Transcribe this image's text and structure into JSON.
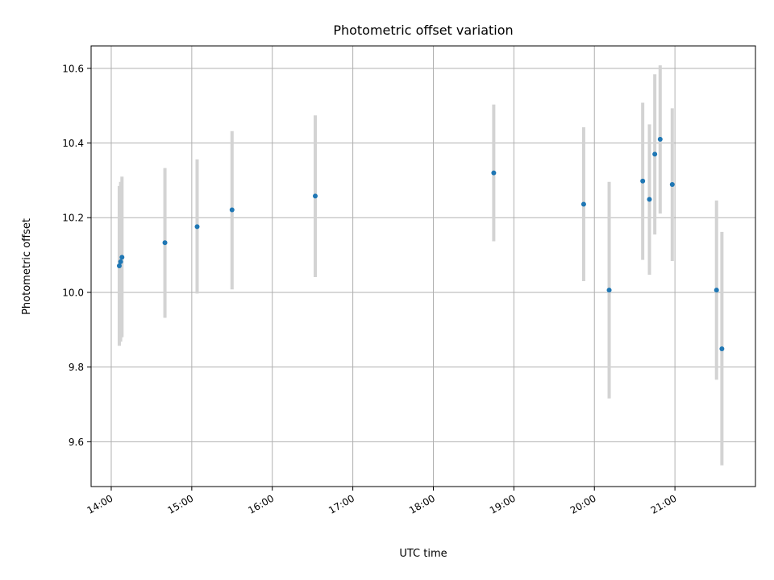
{
  "chart_data": {
    "type": "scatter",
    "title": "Photometric offset variation",
    "xlabel": "UTC time",
    "ylabel": "Photometric offset",
    "x_tick_labels": [
      "14:00",
      "15:00",
      "16:00",
      "17:00",
      "18:00",
      "19:00",
      "20:00",
      "21:00"
    ],
    "x_tick_hours": [
      14,
      15,
      16,
      17,
      18,
      19,
      20,
      21
    ],
    "y_ticks": [
      9.6,
      9.8,
      10.0,
      10.2,
      10.4,
      10.6
    ],
    "y_tick_labels": [
      "9.6",
      "9.8",
      "10.0",
      "10.2",
      "10.4",
      "10.6"
    ],
    "xlim": [
      "13:45",
      "22:00"
    ],
    "ylim": [
      9.48,
      10.66
    ],
    "grid": true,
    "colors": {
      "point": "#1f77b4",
      "error_bar": "#d3d3d3",
      "grid": "#b0b0b0"
    },
    "series": [
      {
        "points": [
          {
            "time": "14:06",
            "y": 10.071,
            "low": 9.857,
            "high": 10.285
          },
          {
            "time": "14:07",
            "y": 10.082,
            "low": 9.868,
            "high": 10.296
          },
          {
            "time": "14:08",
            "y": 10.094,
            "low": 9.88,
            "high": 10.31
          },
          {
            "time": "14:40",
            "y": 10.133,
            "low": 9.932,
            "high": 10.333
          },
          {
            "time": "15:04",
            "y": 10.176,
            "low": 9.997,
            "high": 10.356
          },
          {
            "time": "15:30",
            "y": 10.221,
            "low": 10.008,
            "high": 10.432
          },
          {
            "time": "16:32",
            "y": 10.258,
            "low": 10.041,
            "high": 10.474
          },
          {
            "time": "18:45",
            "y": 10.32,
            "low": 10.137,
            "high": 10.503
          },
          {
            "time": "19:52",
            "y": 10.236,
            "low": 10.03,
            "high": 10.442
          },
          {
            "time": "20:11",
            "y": 10.006,
            "low": 9.716,
            "high": 10.296
          },
          {
            "time": "20:36",
            "y": 10.298,
            "low": 10.087,
            "high": 10.508
          },
          {
            "time": "20:41",
            "y": 10.249,
            "low": 10.047,
            "high": 10.45
          },
          {
            "time": "20:45",
            "y": 10.37,
            "low": 10.155,
            "high": 10.584
          },
          {
            "time": "20:49",
            "y": 10.41,
            "low": 10.211,
            "high": 10.608
          },
          {
            "time": "20:58",
            "y": 10.289,
            "low": 10.084,
            "high": 10.493
          },
          {
            "time": "21:31",
            "y": 10.006,
            "low": 9.766,
            "high": 10.246
          },
          {
            "time": "21:35",
            "y": 9.849,
            "low": 9.537,
            "high": 10.162
          }
        ]
      }
    ]
  }
}
